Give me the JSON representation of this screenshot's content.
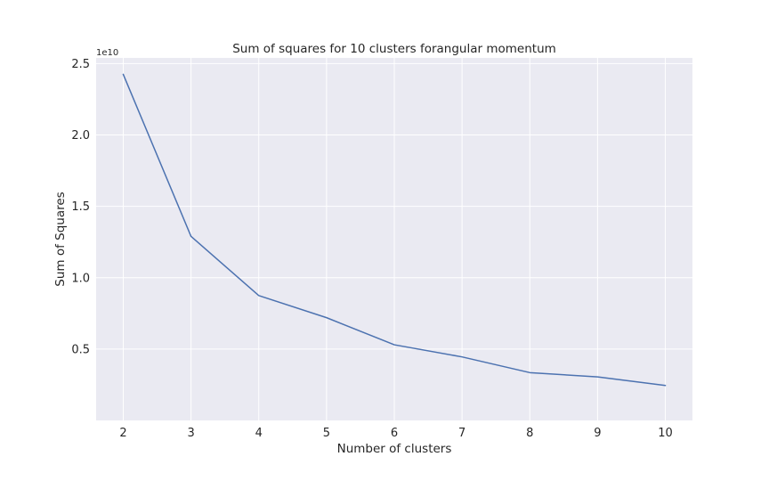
{
  "chart_data": {
    "type": "line",
    "title": "Sum of squares for 10 clusters forangular momentum",
    "xlabel": "Number of clusters",
    "ylabel": "Sum of Squares",
    "y_offset_label": "1e10",
    "x": [
      2,
      3,
      4,
      5,
      6,
      7,
      8,
      9,
      10
    ],
    "series": [
      {
        "values": [
          24250000000,
          12900000000,
          8750000000,
          7200000000,
          5300000000,
          4450000000,
          3350000000,
          3050000000,
          2450000000
        ]
      }
    ],
    "xlim": [
      1.6,
      10.4
    ],
    "ylim": [
      0,
      25400000000
    ],
    "x_ticks": [
      2,
      3,
      4,
      5,
      6,
      7,
      8,
      9,
      10
    ],
    "x_tick_labels": [
      "2",
      "3",
      "4",
      "5",
      "6",
      "7",
      "8",
      "9",
      "10"
    ],
    "y_ticks": [
      5000000000,
      10000000000,
      15000000000,
      20000000000,
      25000000000
    ],
    "y_tick_labels": [
      "0.5",
      "1.0",
      "1.5",
      "2.0",
      "2.5"
    ],
    "grid": true,
    "colors": {
      "line": "#4c72b0",
      "plot_background": "#eaeaf2",
      "grid": "#ffffff"
    }
  }
}
